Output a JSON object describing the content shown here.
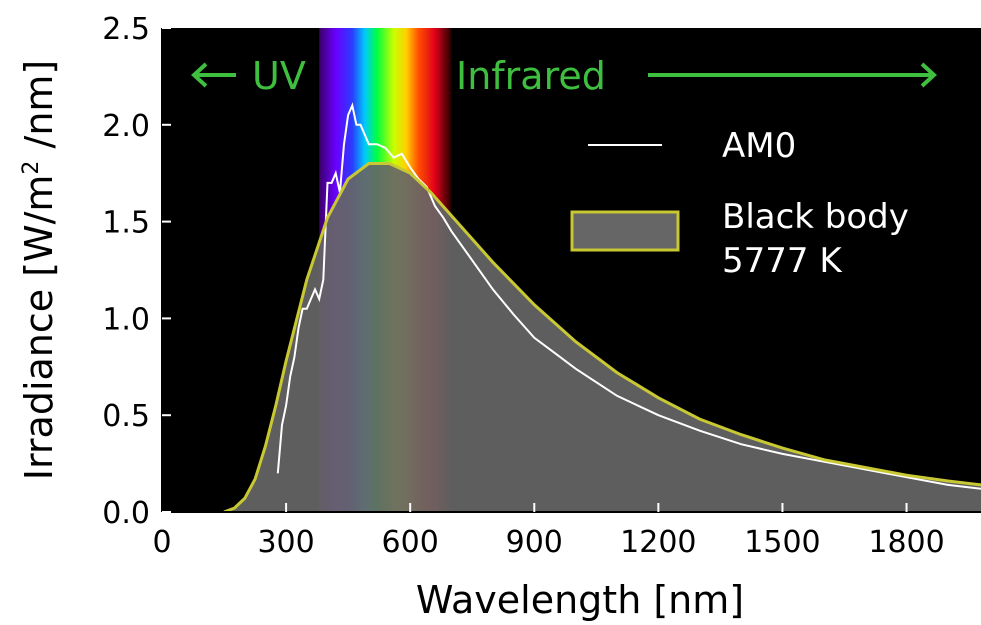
{
  "chart_data": {
    "type": "area",
    "xlabel": "Wavelength [nm]",
    "ylabel_main": "Irradiance [W/m",
    "ylabel_sup": "2",
    "ylabel_tail": " /nm]",
    "xlim": [
      0,
      1980
    ],
    "ylim": [
      0,
      2.5
    ],
    "xticks": [
      0,
      300,
      600,
      900,
      1200,
      1500,
      1800
    ],
    "xtick_labels": [
      "0",
      "300",
      "600",
      "900",
      "1200",
      "1500",
      "1800"
    ],
    "yticks": [
      0,
      0.5,
      1.0,
      1.5,
      2.0,
      2.5
    ],
    "ytick_labels": [
      "0.0",
      "0.5",
      "1.0",
      "1.5",
      "2.0",
      "2.5"
    ],
    "background": "#000000",
    "annotations": {
      "uv": "UV",
      "infrared": "Infrared",
      "color": "#3fbf3f"
    },
    "legend": {
      "placement": "right",
      "am0_label": "AM0",
      "blackbody_label_line1": "Black body",
      "blackbody_label_line2": "5777 K"
    },
    "series": [
      {
        "name": "AM0",
        "color": "#ffffff",
        "x": [
          280,
          290,
          300,
          310,
          320,
          330,
          340,
          350,
          360,
          370,
          380,
          390,
          400,
          410,
          420,
          430,
          440,
          450,
          460,
          470,
          480,
          490,
          500,
          520,
          540,
          560,
          580,
          600,
          620,
          640,
          660,
          680,
          700,
          750,
          800,
          850,
          900,
          950,
          1000,
          1100,
          1200,
          1300,
          1400,
          1500,
          1600,
          1700,
          1800,
          1900,
          1980
        ],
        "y": [
          0.2,
          0.45,
          0.55,
          0.7,
          0.8,
          0.95,
          1.05,
          1.05,
          1.1,
          1.15,
          1.1,
          1.2,
          1.7,
          1.7,
          1.75,
          1.65,
          1.9,
          2.05,
          2.1,
          2.0,
          2.0,
          1.95,
          1.9,
          1.9,
          1.88,
          1.83,
          1.85,
          1.78,
          1.72,
          1.68,
          1.58,
          1.52,
          1.45,
          1.3,
          1.15,
          1.02,
          0.9,
          0.82,
          0.74,
          0.6,
          0.5,
          0.42,
          0.35,
          0.3,
          0.26,
          0.22,
          0.18,
          0.14,
          0.12
        ]
      },
      {
        "name": "Black body 5777 K",
        "color": "#c8c832",
        "fill": "#666666",
        "x": [
          150,
          175,
          200,
          225,
          250,
          275,
          300,
          350,
          400,
          450,
          500,
          550,
          600,
          650,
          700,
          750,
          800,
          900,
          1000,
          1100,
          1200,
          1300,
          1400,
          1500,
          1600,
          1700,
          1800,
          1900,
          1980
        ],
        "y": [
          0.0,
          0.02,
          0.07,
          0.17,
          0.34,
          0.55,
          0.78,
          1.2,
          1.52,
          1.72,
          1.8,
          1.8,
          1.75,
          1.65,
          1.53,
          1.41,
          1.29,
          1.07,
          0.88,
          0.72,
          0.59,
          0.48,
          0.4,
          0.33,
          0.27,
          0.23,
          0.19,
          0.16,
          0.14
        ]
      }
    ],
    "visible_spectrum": [
      {
        "nm": 380,
        "color": "#3a0066"
      },
      {
        "nm": 420,
        "color": "#6a00ff"
      },
      {
        "nm": 460,
        "color": "#2a3dff"
      },
      {
        "nm": 490,
        "color": "#00c8ff"
      },
      {
        "nm": 520,
        "color": "#00ff40"
      },
      {
        "nm": 560,
        "color": "#c8ff00"
      },
      {
        "nm": 590,
        "color": "#ffd000"
      },
      {
        "nm": 620,
        "color": "#ff5000"
      },
      {
        "nm": 660,
        "color": "#e0001a"
      },
      {
        "nm": 700,
        "color": "#200000"
      }
    ]
  }
}
